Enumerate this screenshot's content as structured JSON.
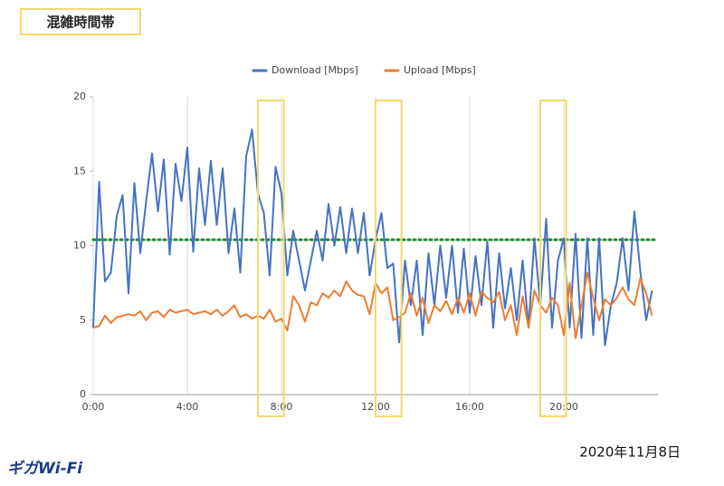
{
  "header": {
    "title": "混雑時間帯"
  },
  "chart_data": {
    "type": "line",
    "x": [
      0,
      0.25,
      0.5,
      0.75,
      1,
      1.25,
      1.5,
      1.75,
      2,
      2.25,
      2.5,
      2.75,
      3,
      3.25,
      3.5,
      3.75,
      4,
      4.25,
      4.5,
      4.75,
      5,
      5.25,
      5.5,
      5.75,
      6,
      6.25,
      6.5,
      6.75,
      7,
      7.25,
      7.5,
      7.75,
      8,
      8.25,
      8.5,
      8.75,
      9,
      9.25,
      9.5,
      9.75,
      10,
      10.25,
      10.5,
      10.75,
      11,
      11.25,
      11.5,
      11.75,
      12,
      12.25,
      12.5,
      12.75,
      13,
      13.25,
      13.5,
      13.75,
      14,
      14.25,
      14.5,
      14.75,
      15,
      15.25,
      15.5,
      15.75,
      16,
      16.25,
      16.5,
      16.75,
      17,
      17.25,
      17.5,
      17.75,
      18,
      18.25,
      18.5,
      18.75,
      19,
      19.25,
      19.5,
      19.75,
      20,
      20.25,
      20.5,
      20.75,
      21,
      21.25,
      21.5,
      21.75,
      22,
      22.25,
      22.5,
      22.75,
      23,
      23.25,
      23.5,
      23.75
    ],
    "series": [
      {
        "name": "Download [Mbps]",
        "color": "#4472c4",
        "values": [
          4.5,
          14.3,
          7.6,
          8.2,
          12.0,
          13.4,
          6.8,
          14.2,
          9.5,
          13.0,
          16.2,
          12.3,
          15.8,
          9.4,
          15.5,
          13.0,
          16.6,
          9.6,
          15.2,
          11.4,
          15.7,
          11.4,
          15.2,
          9.5,
          12.5,
          8.2,
          16.0,
          17.8,
          13.5,
          12.2,
          8.0,
          15.3,
          13.5,
          8.0,
          11.0,
          9.0,
          7.0,
          9.0,
          11.0,
          9.0,
          12.8,
          10.0,
          12.6,
          9.5,
          12.5,
          9.5,
          12.2,
          8.0,
          10.4,
          12.2,
          8.5,
          8.8,
          3.5,
          9.0,
          6.0,
          9.0,
          4.0,
          9.5,
          6.0,
          10.0,
          6.5,
          10.0,
          5.5,
          9.8,
          5.5,
          9.3,
          6.0,
          10.3,
          4.5,
          9.5,
          5.8,
          8.5,
          5.0,
          9.0,
          4.5,
          10.5,
          6.0,
          11.8,
          4.5,
          9.0,
          10.5,
          4.5,
          10.8,
          3.8,
          10.5,
          4.0,
          10.5,
          3.3,
          6.0,
          7.5,
          10.5,
          7.0,
          12.3,
          8.3,
          5.0,
          7.0
        ]
      },
      {
        "name": "Upload [Mbps]",
        "color": "#ed7d31",
        "values": [
          4.5,
          4.6,
          5.3,
          4.8,
          5.2,
          5.3,
          5.4,
          5.3,
          5.6,
          5.0,
          5.5,
          5.6,
          5.2,
          5.7,
          5.5,
          5.6,
          5.7,
          5.4,
          5.5,
          5.6,
          5.4,
          5.7,
          5.3,
          5.6,
          6.0,
          5.2,
          5.4,
          5.1,
          5.3,
          5.1,
          5.7,
          4.9,
          5.1,
          4.3,
          6.6,
          6.0,
          4.9,
          6.2,
          6.0,
          6.8,
          6.5,
          7.0,
          6.6,
          7.6,
          7.0,
          6.7,
          6.6,
          5.4,
          7.5,
          6.8,
          7.2,
          5.0,
          5.2,
          5.5,
          6.8,
          5.3,
          6.5,
          4.8,
          6.0,
          5.6,
          6.3,
          5.4,
          6.5,
          5.5,
          6.8,
          5.3,
          6.9,
          6.5,
          6.2,
          6.9,
          5.0,
          6.0,
          4.0,
          6.6,
          4.5,
          7.0,
          6.0,
          5.5,
          6.5,
          6.0,
          4.0,
          7.5,
          3.8,
          6.0,
          8.2,
          6.5,
          5.0,
          6.4,
          6.0,
          6.5,
          7.2,
          6.4,
          6.0,
          7.8,
          6.8,
          5.3
        ]
      }
    ],
    "xlim": [
      0,
      24
    ],
    "ylim": [
      0,
      20
    ],
    "xticks": [
      {
        "value": 0,
        "label": "0:00"
      },
      {
        "value": 4,
        "label": "4:00"
      },
      {
        "value": 8,
        "label": "8:00"
      },
      {
        "value": 12,
        "label": "12:00"
      },
      {
        "value": 16,
        "label": "16:00"
      },
      {
        "value": 20,
        "label": "20:00"
      }
    ],
    "yticks": [
      0,
      5,
      10,
      15,
      20
    ],
    "grid": "x",
    "legend": "top",
    "reference_line": {
      "value": 10.4,
      "color": "#1e8a2e"
    },
    "highlights": [
      [
        7,
        8.1
      ],
      [
        12,
        13.1
      ],
      [
        19,
        20.1
      ]
    ],
    "highlight_color": "#f2d96b"
  },
  "footer": {
    "logo": "ギガWi-Fi",
    "date": "2020年11月8日"
  }
}
